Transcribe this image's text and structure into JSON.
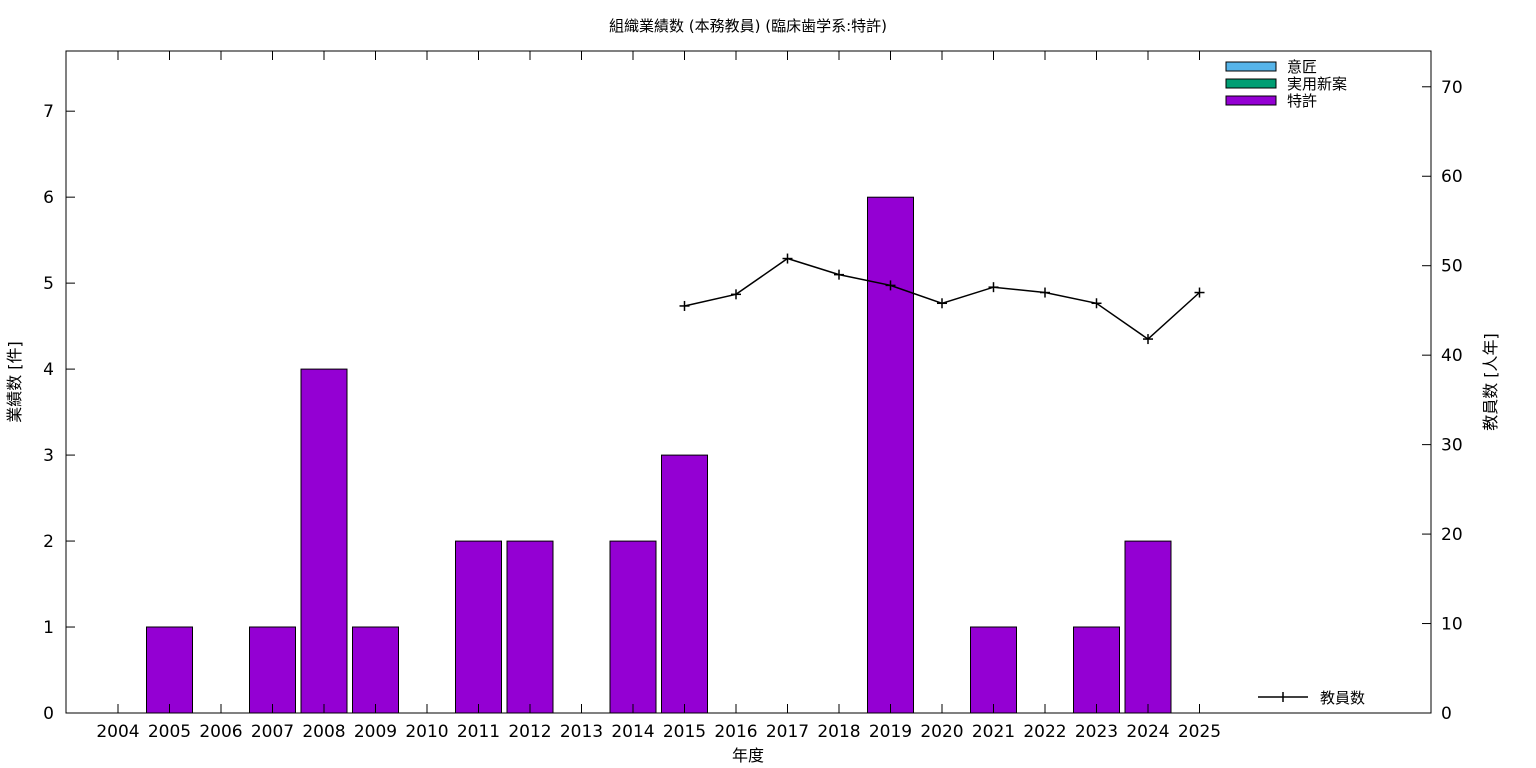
{
  "chart_data": {
    "type": "bar",
    "title": "組織業績数 (本務教員) (臨床歯学系:特許)",
    "xlabel": "年度",
    "ylabel": "業績数 [件]",
    "y2label": "教員数 [人年]",
    "ylim": [
      0,
      7.7
    ],
    "y2lim": [
      0,
      74
    ],
    "yticks": [
      0,
      1,
      2,
      3,
      4,
      5,
      6,
      7
    ],
    "y2ticks": [
      0,
      10,
      20,
      30,
      40,
      50,
      60,
      70
    ],
    "categories": [
      "2004",
      "2005",
      "2006",
      "2007",
      "2008",
      "2009",
      "2010",
      "2011",
      "2012",
      "2013",
      "2014",
      "2015",
      "2016",
      "2017",
      "2018",
      "2019",
      "2020",
      "2021",
      "2022",
      "2023",
      "2024",
      "2025"
    ],
    "series": [
      {
        "name": "意匠",
        "color": "#56b4e9",
        "values": [
          0,
          0,
          0,
          0,
          0,
          0,
          0,
          0,
          0,
          0,
          0,
          0,
          0,
          0,
          0,
          0,
          0,
          0,
          0,
          0,
          0,
          0
        ]
      },
      {
        "name": "実用新案",
        "color": "#009e73",
        "values": [
          0,
          0,
          0,
          0,
          0,
          0,
          0,
          0,
          0,
          0,
          0,
          0,
          0,
          0,
          0,
          0,
          0,
          0,
          0,
          0,
          0,
          0
        ]
      },
      {
        "name": "特許",
        "color": "#9400d3",
        "values": [
          0,
          1,
          0,
          1,
          4,
          1,
          0,
          2,
          2,
          0,
          2,
          3,
          0,
          0,
          0,
          6,
          0,
          1,
          0,
          1,
          2,
          0
        ]
      }
    ],
    "line_series": {
      "name": "教員数",
      "color": "#000000",
      "axis": "y2",
      "x": [
        "2015",
        "2016",
        "2017",
        "2018",
        "2019",
        "2020",
        "2021",
        "2022",
        "2023",
        "2024",
        "2025"
      ],
      "values": [
        45.5,
        46.8,
        50.8,
        49.0,
        47.8,
        45.8,
        47.6,
        47.0,
        45.8,
        41.8,
        47.0
      ]
    },
    "legend": "top-right",
    "line_legend": "bottom-right",
    "grid": false
  }
}
